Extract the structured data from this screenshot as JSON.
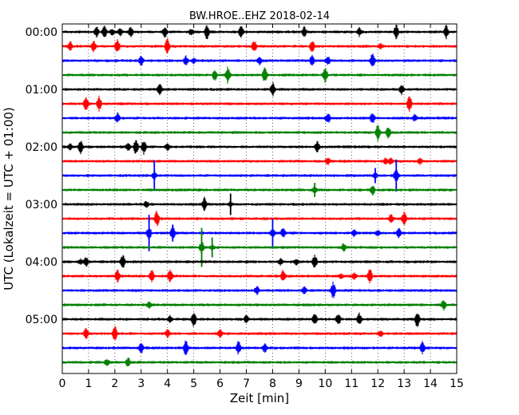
{
  "chart_data": {
    "type": "line",
    "title": "BW.HROE..EHZ 2018-02-14",
    "xlabel": "Zeit  [min]",
    "ylabel": "UTC (Lokalzeit = UTC + 01:00)",
    "xlim": [
      0,
      15
    ],
    "xticks": [
      "0",
      "1",
      "2",
      "3",
      "4",
      "5",
      "6",
      "7",
      "8",
      "9",
      "10",
      "11",
      "12",
      "13",
      "14",
      "15"
    ],
    "yticks": [
      "00:00",
      "01:00",
      "02:00",
      "03:00",
      "04:00",
      "05:00"
    ],
    "trace_interval_min": 15,
    "trace_count": 24,
    "trace_colors": [
      "#000000",
      "#ff0000",
      "#0000ff",
      "#008000"
    ],
    "grid": "vertical-dotted",
    "series_events": [
      {
        "trace": "00:00",
        "events_min": [
          1.3,
          1.6,
          1.9,
          2.2,
          2.6,
          3.9,
          4.9,
          5.5,
          6.8,
          9.2,
          11.3,
          12.7,
          14.6
        ]
      },
      {
        "trace": "00:15",
        "events_min": [
          0.3,
          1.2,
          2.1,
          4.0,
          7.3,
          9.5,
          12.1
        ]
      },
      {
        "trace": "00:30",
        "events_min": [
          3.0,
          4.7,
          5.0,
          7.5,
          9.5,
          10.1,
          11.8
        ]
      },
      {
        "trace": "00:45",
        "events_min": [
          5.8,
          6.3,
          7.7,
          10.0
        ]
      },
      {
        "trace": "01:00",
        "events_min": [
          3.7,
          8.0,
          12.9
        ]
      },
      {
        "trace": "01:15",
        "events_min": [
          0.9,
          1.4,
          13.2
        ]
      },
      {
        "trace": "01:30",
        "events_min": [
          2.1,
          10.1,
          11.8,
          13.4
        ]
      },
      {
        "trace": "01:45",
        "events_min": [
          12.0,
          12.4
        ]
      },
      {
        "trace": "02:00",
        "events_min": [
          0.3,
          0.7,
          2.5,
          2.8,
          3.1,
          4.0,
          9.7
        ]
      },
      {
        "trace": "02:15",
        "events_min": [
          10.1,
          12.3,
          12.5,
          13.6
        ]
      },
      {
        "trace": "02:30",
        "events_min": [
          3.5,
          11.9,
          12.7
        ]
      },
      {
        "trace": "02:45",
        "events_min": [
          9.6,
          11.8
        ]
      },
      {
        "trace": "03:00",
        "events_min": [
          3.2,
          5.4,
          6.4
        ]
      },
      {
        "trace": "03:15",
        "events_min": [
          3.6,
          12.5,
          13.0
        ]
      },
      {
        "trace": "03:30",
        "events_min": [
          3.3,
          4.2,
          8.0,
          8.4,
          11.1,
          12.0,
          12.8
        ]
      },
      {
        "trace": "03:45",
        "events_min": [
          5.3,
          5.7,
          10.7
        ]
      },
      {
        "trace": "04:00",
        "events_min": [
          0.7,
          0.9,
          2.3,
          8.3,
          8.9,
          9.6
        ]
      },
      {
        "trace": "04:15",
        "events_min": [
          2.1,
          3.4,
          4.1,
          8.4,
          10.6,
          11.1,
          11.7
        ]
      },
      {
        "trace": "04:30",
        "events_min": [
          7.4,
          9.2,
          10.3
        ]
      },
      {
        "trace": "04:45",
        "events_min": [
          3.3,
          14.5
        ]
      },
      {
        "trace": "05:00",
        "events_min": [
          4.1,
          5.0,
          7.0,
          9.6,
          10.5,
          11.3,
          13.5
        ]
      },
      {
        "trace": "05:15",
        "events_min": [
          0.9,
          2.0,
          4.0,
          6.0,
          12.1
        ]
      },
      {
        "trace": "05:30",
        "events_min": [
          3.0,
          4.7,
          6.7,
          7.7,
          13.7
        ]
      },
      {
        "trace": "05:45",
        "events_min": [
          1.7,
          2.5
        ]
      }
    ]
  }
}
